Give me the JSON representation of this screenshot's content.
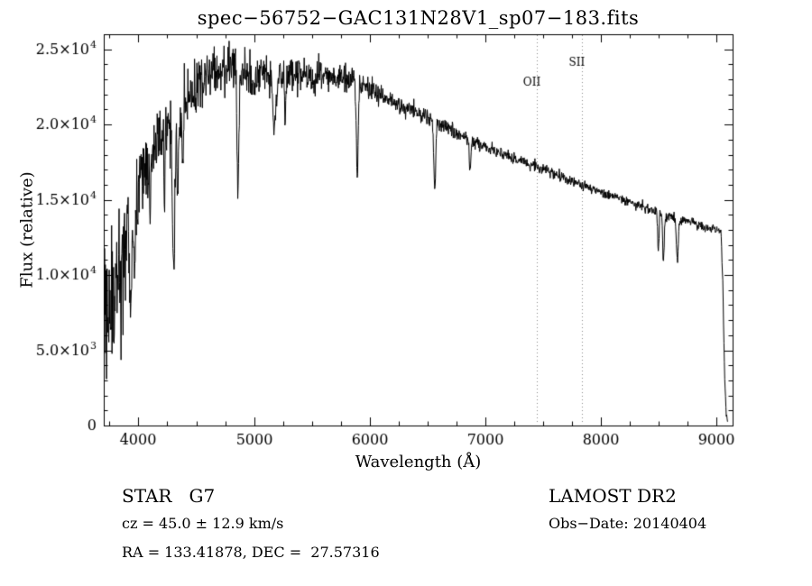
{
  "annotations": {
    "class_label": "STAR   G7",
    "survey": "LAMOST DR2",
    "cz": "cz = 45.0 ± 12.9 km/s",
    "obs_date": "Obs−Date: 20140404",
    "coords": "RA = 133.41878, DEC =  27.57316"
  },
  "chart_data": {
    "type": "line",
    "title": "spec−56752−GAC131N28V1_sp07−183.fits",
    "xlabel": "Wavelength (Å)",
    "ylabel": "Flux (relative)",
    "xlim": [
      3700,
      9140
    ],
    "ylim": [
      0,
      26000
    ],
    "grid": false,
    "legend": "none",
    "line_color": "#000000",
    "sky_line_color": "#8a8a8a",
    "x_minor_step": 250,
    "y_minor_step": 1000,
    "xticks": [
      {
        "value": 4000,
        "label": "4000"
      },
      {
        "value": 5000,
        "label": "5000"
      },
      {
        "value": 6000,
        "label": "6000"
      },
      {
        "value": 7000,
        "label": "7000"
      },
      {
        "value": 8000,
        "label": "8000"
      },
      {
        "value": 9000,
        "label": "9000"
      }
    ],
    "yticks": [
      {
        "value": 0,
        "label": "0"
      },
      {
        "value": 5000,
        "label": "5.0×10³",
        "mantissa": "5.0×10",
        "exp": "3"
      },
      {
        "value": 10000,
        "label": "1.0×10⁴",
        "mantissa": "1.0×10",
        "exp": "4"
      },
      {
        "value": 15000,
        "label": "1.5×10⁴",
        "mantissa": "1.5×10",
        "exp": "4"
      },
      {
        "value": 20000,
        "label": "2.0×10⁴",
        "mantissa": "2.0×10",
        "exp": "4"
      },
      {
        "value": 25000,
        "label": "2.5×10⁴",
        "mantissa": "2.5×10",
        "exp": "4"
      }
    ],
    "sky_lines": [
      {
        "x": 7450,
        "label": "OII",
        "label_y": 22600
      },
      {
        "x": 7840,
        "label": "SII",
        "label_y": 23900
      }
    ],
    "continuum": [
      [
        3690,
        5500
      ],
      [
        3720,
        7000
      ],
      [
        3750,
        7800
      ],
      [
        3780,
        8200
      ],
      [
        3810,
        8800
      ],
      [
        3840,
        9600
      ],
      [
        3870,
        10600
      ],
      [
        3900,
        11800
      ],
      [
        3930,
        13000
      ],
      [
        3960,
        14200
      ],
      [
        4000,
        15800
      ],
      [
        4050,
        17000
      ],
      [
        4100,
        17900
      ],
      [
        4150,
        18400
      ],
      [
        4200,
        19000
      ],
      [
        4250,
        19600
      ],
      [
        4300,
        20200
      ],
      [
        4350,
        20700
      ],
      [
        4400,
        21300
      ],
      [
        4450,
        21900
      ],
      [
        4500,
        22400
      ],
      [
        4550,
        22800
      ],
      [
        4600,
        23100
      ],
      [
        4650,
        23400
      ],
      [
        4700,
        23600
      ],
      [
        4800,
        23800
      ],
      [
        4900,
        23300
      ],
      [
        5000,
        23100
      ],
      [
        5100,
        23300
      ],
      [
        5200,
        23100
      ],
      [
        5300,
        23400
      ],
      [
        5400,
        23200
      ],
      [
        5500,
        23100
      ],
      [
        5600,
        23200
      ],
      [
        5700,
        23100
      ],
      [
        5800,
        23000
      ],
      [
        5900,
        22800
      ],
      [
        6000,
        22400
      ],
      [
        6100,
        22000
      ],
      [
        6200,
        21600
      ],
      [
        6300,
        21200
      ],
      [
        6400,
        20800
      ],
      [
        6500,
        20400
      ],
      [
        6600,
        20000
      ],
      [
        6700,
        19600
      ],
      [
        6800,
        19200
      ],
      [
        6900,
        18800
      ],
      [
        7000,
        18500
      ],
      [
        7100,
        18200
      ],
      [
        7200,
        17900
      ],
      [
        7300,
        17600
      ],
      [
        7400,
        17300
      ],
      [
        7500,
        17000
      ],
      [
        7600,
        16700
      ],
      [
        7700,
        16400
      ],
      [
        7800,
        16100
      ],
      [
        7900,
        15800
      ],
      [
        8000,
        15500
      ],
      [
        8100,
        15250
      ],
      [
        8200,
        15000
      ],
      [
        8300,
        14700
      ],
      [
        8400,
        14400
      ],
      [
        8500,
        14150
      ],
      [
        8600,
        13900
      ],
      [
        8700,
        13650
      ],
      [
        8800,
        13400
      ],
      [
        8900,
        13200
      ],
      [
        9000,
        13000
      ],
      [
        9040,
        12900
      ],
      [
        9055,
        9500
      ],
      [
        9070,
        3500
      ],
      [
        9085,
        700
      ],
      [
        9100,
        250
      ]
    ],
    "absorption_lines": [
      {
        "center": 3934,
        "depth": 5000,
        "sigma": 8
      },
      {
        "center": 3968,
        "depth": 4500,
        "sigma": 8
      },
      {
        "center": 4102,
        "depth": 4200,
        "sigma": 7
      },
      {
        "center": 4227,
        "depth": 3000,
        "sigma": 6
      },
      {
        "center": 4305,
        "depth": 9500,
        "sigma": 11
      },
      {
        "center": 4340,
        "depth": 4800,
        "sigma": 7
      },
      {
        "center": 4383,
        "depth": 3500,
        "sigma": 6
      },
      {
        "center": 4861,
        "depth": 7500,
        "sigma": 8
      },
      {
        "center": 5175,
        "depth": 4200,
        "sigma": 9
      },
      {
        "center": 5270,
        "depth": 3000,
        "sigma": 7
      },
      {
        "center": 5893,
        "depth": 5800,
        "sigma": 8
      },
      {
        "center": 6563,
        "depth": 4600,
        "sigma": 8
      },
      {
        "center": 6870,
        "depth": 1800,
        "sigma": 6
      },
      {
        "center": 8498,
        "depth": 2400,
        "sigma": 6
      },
      {
        "center": 8542,
        "depth": 3200,
        "sigma": 7
      },
      {
        "center": 8662,
        "depth": 2900,
        "sigma": 7
      }
    ],
    "noise_profile": [
      [
        3690,
        2600
      ],
      [
        3800,
        2400
      ],
      [
        3900,
        2100
      ],
      [
        4000,
        1600
      ],
      [
        4150,
        1300
      ],
      [
        4300,
        1150
      ],
      [
        4500,
        950
      ],
      [
        4700,
        850
      ],
      [
        4900,
        750
      ],
      [
        5100,
        650
      ],
      [
        5300,
        600
      ],
      [
        5500,
        520
      ],
      [
        5800,
        450
      ],
      [
        6000,
        380
      ],
      [
        6300,
        330
      ],
      [
        6600,
        280
      ],
      [
        7000,
        220
      ],
      [
        7400,
        190
      ],
      [
        7800,
        170
      ],
      [
        8200,
        160
      ],
      [
        8600,
        170
      ],
      [
        9000,
        150
      ],
      [
        9100,
        80
      ]
    ]
  }
}
